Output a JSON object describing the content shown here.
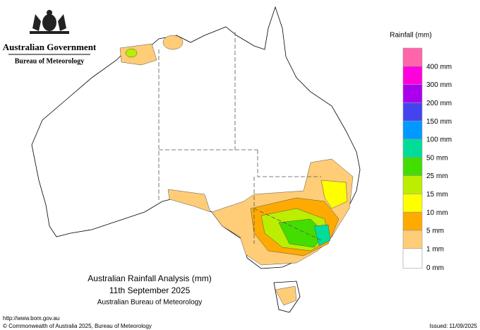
{
  "header": {
    "government": "Australian Government",
    "bureau": "Bureau of Meteorology"
  },
  "legend": {
    "title": "Rainfall (mm)",
    "colors": [
      "#ff66aa",
      "#ff00dd",
      "#aa00ee",
      "#4444ee",
      "#0099ff",
      "#00dd99",
      "#44dd00",
      "#bbee00",
      "#ffff00",
      "#ffaa00",
      "#ffcc77",
      "#ffffff"
    ],
    "labels": [
      "400 mm",
      "300 mm",
      "200 mm",
      "150 mm",
      "100 mm",
      "50 mm",
      "25 mm",
      "15 mm",
      "10 mm",
      "5 mm",
      "1 mm",
      "0 mm"
    ]
  },
  "map_title": {
    "line1": "Australian Rainfall Analysis (mm)",
    "line2": "11th September 2025",
    "line3": "Australian Bureau of Meteorology"
  },
  "footer": {
    "url": "http://www.bom.gov.au",
    "copyright": "© Commonwealth of Australia 2025, Bureau of Meteorology",
    "issued": "Issued: 11/09/2025"
  }
}
